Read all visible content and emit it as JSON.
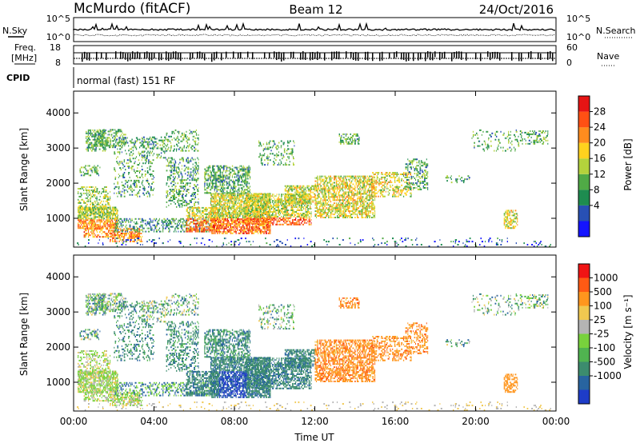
{
  "header": {
    "station": "McMurdo (fitACF)",
    "beam": "Beam 12",
    "date": "24/Oct/2016"
  },
  "summary": {
    "nsky_label": "N.Sky",
    "nsearch_label": "N.Search",
    "freq_label_1": "Freq.",
    "freq_label_2": "[MHz]",
    "nave_label": "Nave",
    "cpid_label": "CPID",
    "mode_text": "normal (fast) 151 RF",
    "noise_ticks_left": [
      "10^5",
      "10^0"
    ],
    "noise_ticks_right": [
      "10^5",
      "10^0"
    ],
    "freq_ticks": [
      "18",
      "8"
    ],
    "nave_ticks": [
      "60",
      "0"
    ]
  },
  "chart_data": [
    {
      "type": "heatmap",
      "name": "power",
      "ylabel": "Slant Range [km]",
      "xlabel": "",
      "ylim": [
        180,
        4620
      ],
      "yticks": [
        "4000",
        "3000",
        "2000",
        "1000"
      ],
      "xlim": [
        0,
        24
      ],
      "colorbar": {
        "label": "Power [dB]",
        "ticks": [
          "28",
          "24",
          "20",
          "16",
          "12",
          "8",
          "4"
        ],
        "colors": [
          "#1414ff",
          "#2850b4",
          "#1e8c50",
          "#50aa46",
          "#b4d23c",
          "#ffd21e",
          "#ff8c1e",
          "#ff5014",
          "#e61414"
        ]
      }
    },
    {
      "type": "heatmap",
      "name": "velocity",
      "ylabel": "Slant Range [km]",
      "xlabel": "Time UT",
      "ylim": [
        180,
        4620
      ],
      "yticks": [
        "4000",
        "3000",
        "2000",
        "1000"
      ],
      "xlim": [
        0,
        24
      ],
      "xticks": [
        "00:00",
        "04:00",
        "08:00",
        "12:00",
        "16:00",
        "20:00",
        "00:00"
      ],
      "colorbar": {
        "label": "Velocity [m s⁻¹]",
        "ticks": [
          "1000",
          "500",
          "100",
          "25",
          "-25",
          "-100",
          "-500",
          "-1000"
        ],
        "colors": [
          "#1e3cc8",
          "#2864a0",
          "#3c8c6e",
          "#50b450",
          "#78d23c",
          "#b4b4b4",
          "#f0c850",
          "#ff961e",
          "#ff5a14",
          "#f01414"
        ]
      }
    }
  ]
}
